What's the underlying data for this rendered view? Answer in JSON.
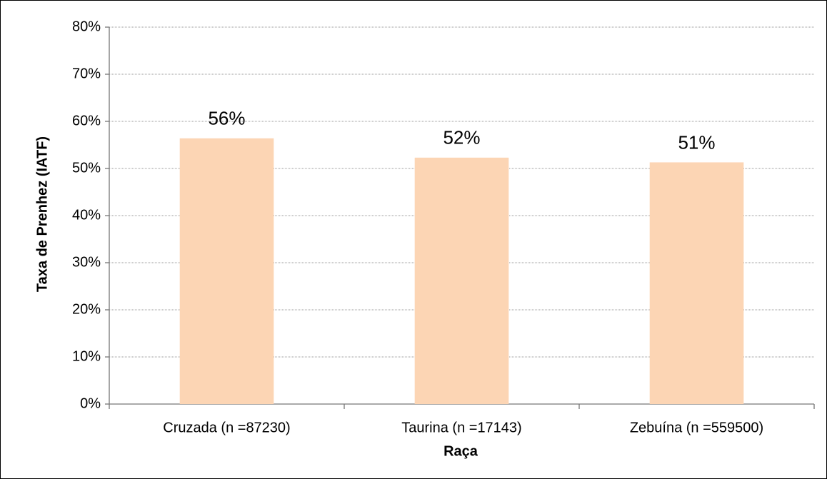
{
  "chart_data": {
    "type": "bar",
    "x_label": "Raça",
    "y_label": "Taxa de Prenhez (IATF)",
    "categories": [
      "Cruzada (n =87230)",
      "Taurina (n =17143)",
      "Zebuína (n =559500)"
    ],
    "values": [
      56.4,
      52.3,
      51.3
    ],
    "value_labels": [
      "56%",
      "52%",
      "51%"
    ],
    "color": "#fcd5b4",
    "ylim": [
      0,
      80
    ],
    "yticks": [
      {
        "value": 0,
        "label": "0%"
      },
      {
        "value": 10,
        "label": "10%"
      },
      {
        "value": 20,
        "label": "20%"
      },
      {
        "value": 30,
        "label": "30%"
      },
      {
        "value": 40,
        "label": "40%"
      },
      {
        "value": 50,
        "label": "50%"
      },
      {
        "value": 60,
        "label": "60%"
      },
      {
        "value": 70,
        "label": "70%"
      },
      {
        "value": 80,
        "label": "80%"
      }
    ],
    "grid": true
  }
}
